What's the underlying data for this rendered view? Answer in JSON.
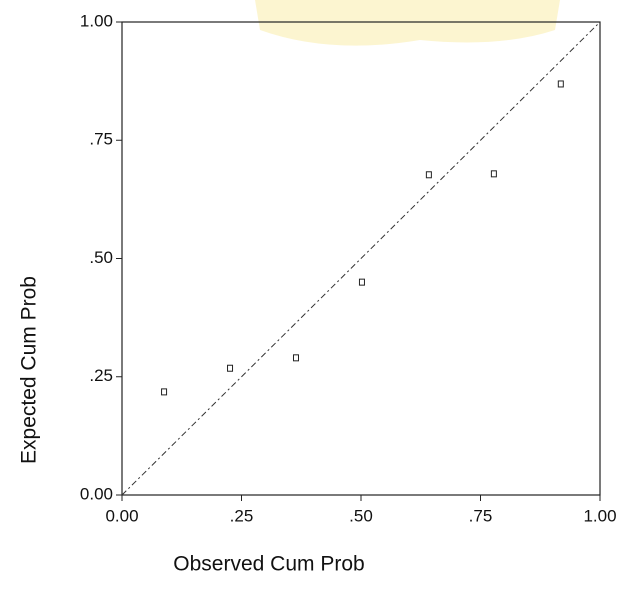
{
  "chart_data": {
    "type": "scatter",
    "x_label": "Observed Cum Prob",
    "y_label": "Expected Cum Prob",
    "x": [
      0.088,
      0.226,
      0.364,
      0.502,
      0.642,
      0.778,
      0.918
    ],
    "values": [
      0.218,
      0.268,
      0.29,
      0.45,
      0.677,
      0.679,
      0.869
    ],
    "color": "#222222",
    "xlim": [
      0,
      1
    ],
    "ylim": [
      0,
      1
    ],
    "xticks": [
      {
        "value": 0,
        "label": "0.00"
      },
      {
        "value": 0.25,
        "label": ".25"
      },
      {
        "value": 0.5,
        "label": ".50"
      },
      {
        "value": 0.75,
        "label": ".75"
      },
      {
        "value": 1,
        "label": "1.00"
      }
    ],
    "yticks": [
      {
        "value": 0,
        "label": "0.00"
      },
      {
        "value": 0.25,
        "label": ".25"
      },
      {
        "value": 0.5,
        "label": ".50"
      },
      {
        "value": 0.75,
        "label": ".75"
      },
      {
        "value": 1,
        "label": "1.00"
      }
    ],
    "grid": false
  }
}
